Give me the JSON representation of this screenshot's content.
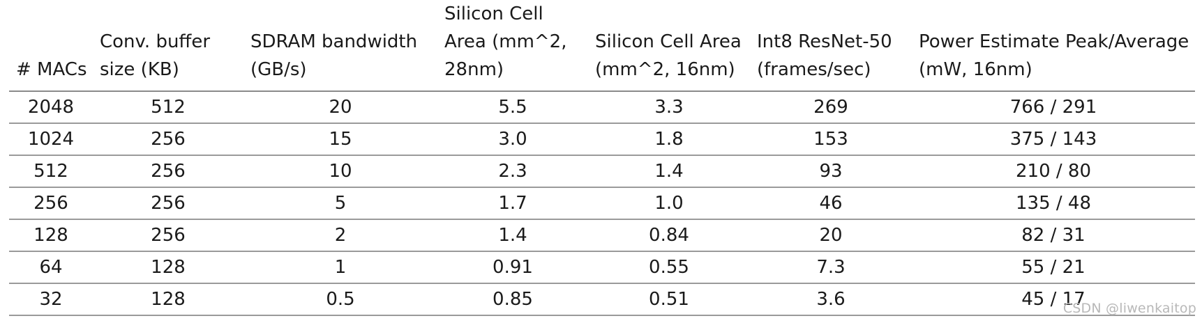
{
  "table": {
    "columns": [
      "# MACs",
      "Conv. buffer size (KB)",
      "SDRAM bandwidth (GB/s)",
      "Silicon Cell Area (mm^2, 28nm)",
      "Silicon Cell Area (mm^2, 16nm)",
      "Int8 ResNet-50 (frames/sec)",
      "Power Estimate Peak/Average (mW, 16nm)"
    ],
    "rows": [
      [
        "2048",
        "512",
        "20",
        "5.5",
        "3.3",
        "269",
        "766 / 291"
      ],
      [
        "1024",
        "256",
        "15",
        "3.0",
        "1.8",
        "153",
        "375 / 143"
      ],
      [
        "512",
        "256",
        "10",
        "2.3",
        "1.4",
        "93",
        "210 / 80"
      ],
      [
        "256",
        "256",
        "5",
        "1.7",
        "1.0",
        "46",
        "135 / 48"
      ],
      [
        "128",
        "256",
        "2",
        "1.4",
        "0.84",
        "20",
        "82 / 31"
      ],
      [
        "64",
        "128",
        "1",
        "0.91",
        "0.55",
        "7.3",
        "55 / 21"
      ],
      [
        "32",
        "128",
        "0.5",
        "0.85",
        "0.51",
        "3.6",
        "45 / 17"
      ]
    ]
  },
  "watermark": "CSDN @liwenkaitop"
}
